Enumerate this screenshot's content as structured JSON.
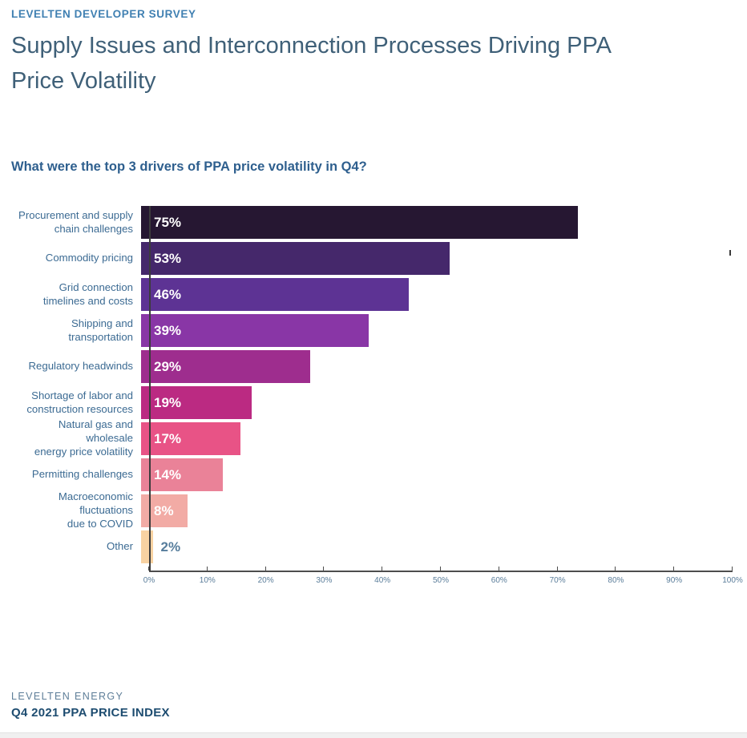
{
  "header": {
    "eyebrow": "LEVELTEN DEVELOPER SURVEY",
    "title": "Supply Issues and Interconnection Processes Driving PPA Price Volatility"
  },
  "chart_data": {
    "type": "bar",
    "orientation": "horizontal",
    "title": "What were the top 3 drivers of PPA price volatility in Q4?",
    "categories": [
      "Procurement and supply\nchain challenges",
      "Commodity pricing",
      "Grid connection\ntimelines and costs",
      "Shipping and\ntransportation",
      "Regulatory headwinds",
      "Shortage of labor and\nconstruction resources",
      "Natural gas and wholesale\nenergy price volatility",
      "Permitting challenges",
      "Macroeconomic\nfluctuations\ndue to COVID",
      "Other"
    ],
    "values": [
      75,
      53,
      46,
      39,
      29,
      19,
      17,
      14,
      8,
      2
    ],
    "value_labels": [
      "75%",
      "53%",
      "46%",
      "39%",
      "29%",
      "19%",
      "17%",
      "14%",
      "8%",
      "2%"
    ],
    "bar_colors": [
      "#261732",
      "#45286b",
      "#5d3394",
      "#8936a6",
      "#9e2d8e",
      "#bb2a82",
      "#e85386",
      "#ea8298",
      "#f2aba5",
      "#f8d2a2"
    ],
    "xlim": [
      0,
      100
    ],
    "x_ticks": [
      "0%",
      "10%",
      "20%",
      "30%",
      "40%",
      "50%",
      "60%",
      "70%",
      "80%",
      "90%",
      "100%"
    ],
    "grid": false,
    "legend": "none",
    "value_label_inside_color": "#ffffff",
    "value_label_outside_color": "#567d9c"
  },
  "footer": {
    "company": "LEVELTEN ENERGY",
    "report": "Q4 2021 PPA PRICE INDEX"
  }
}
